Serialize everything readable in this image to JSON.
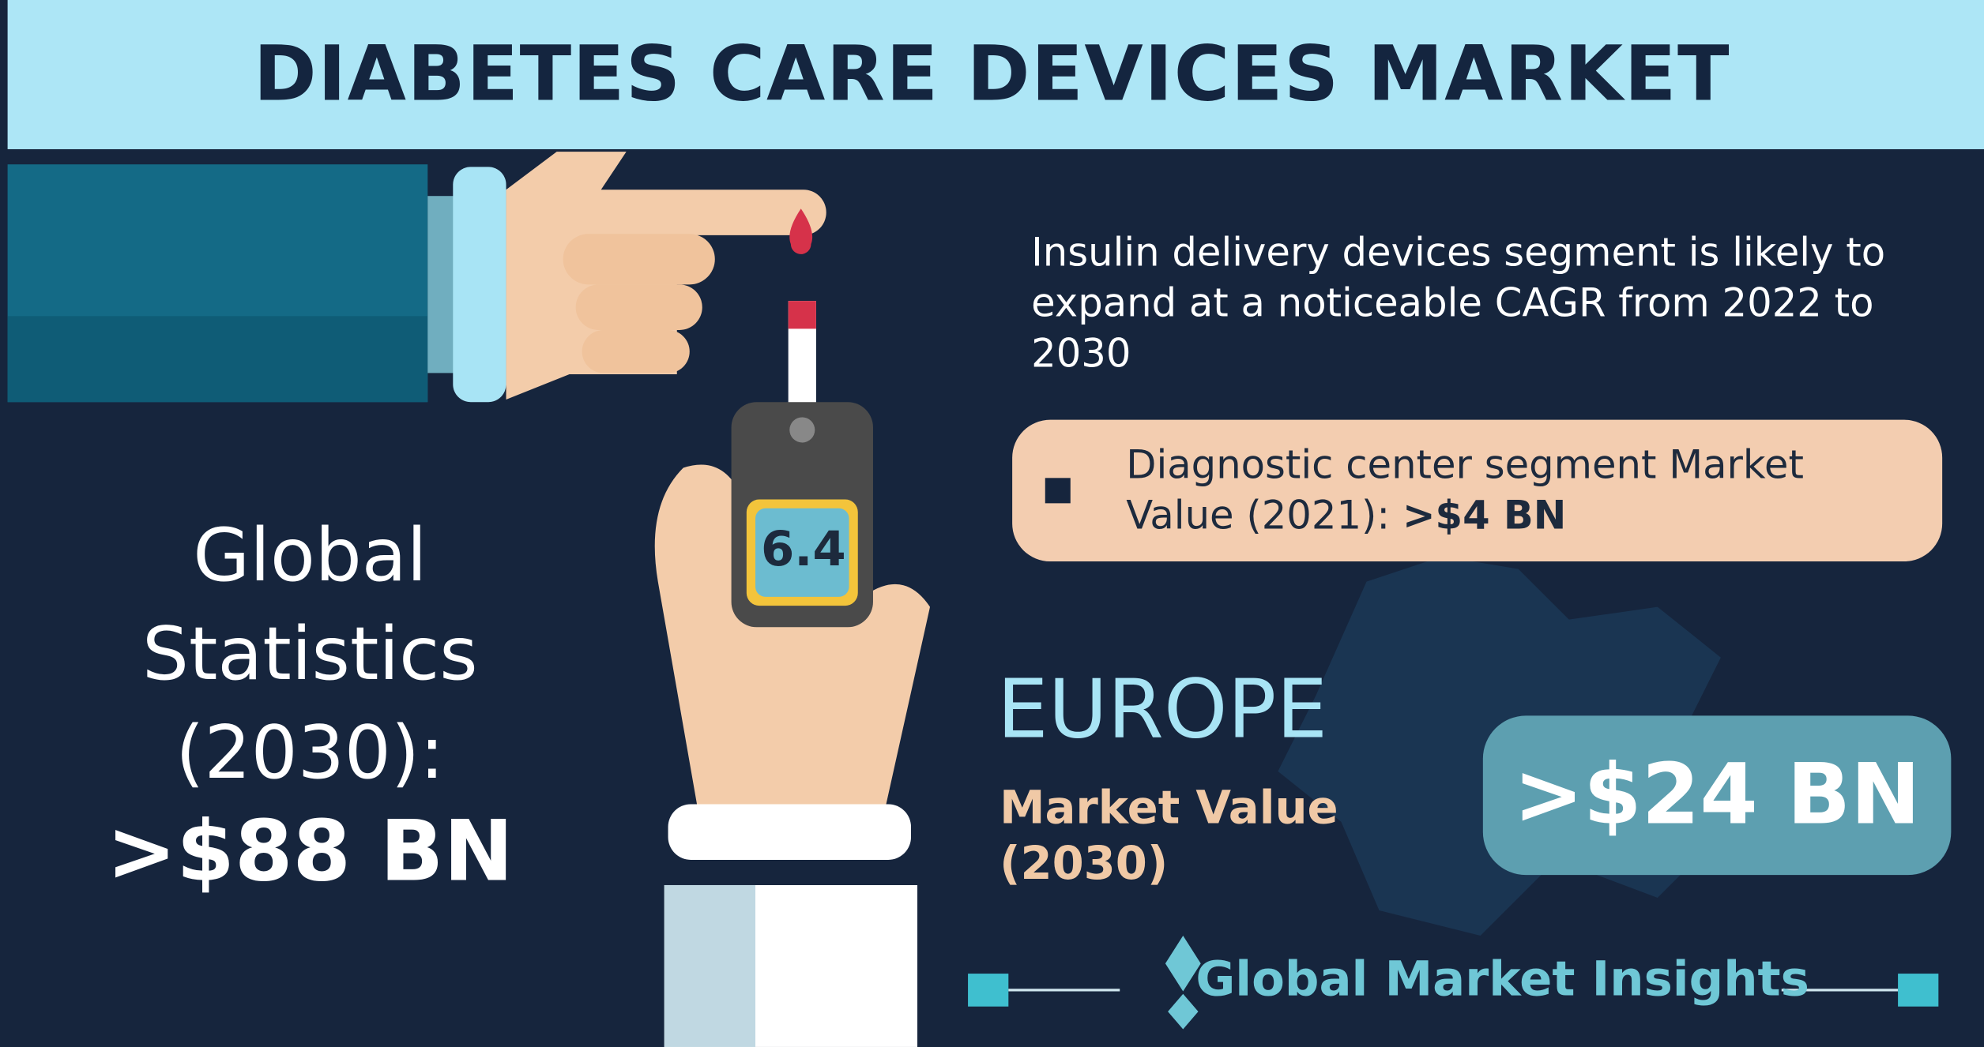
{
  "header": {
    "title": "DIABETES CARE DEVICES MARKET"
  },
  "insight": "Insulin delivery devices segment is likely to expand at a noticeable CAGR from 2022 to 2030",
  "highlight": {
    "text": "Diagnostic center segment Market Value (2021):",
    "value": ">$4 BN"
  },
  "global": {
    "label": "Global Statistics (2030):",
    "value": ">$88 BN"
  },
  "region": {
    "name": "EUROPE",
    "label": "Market Value (2030)",
    "value": ">$24 BN"
  },
  "meter": {
    "reading": "6.4"
  },
  "logo": "Global Market Insights"
}
